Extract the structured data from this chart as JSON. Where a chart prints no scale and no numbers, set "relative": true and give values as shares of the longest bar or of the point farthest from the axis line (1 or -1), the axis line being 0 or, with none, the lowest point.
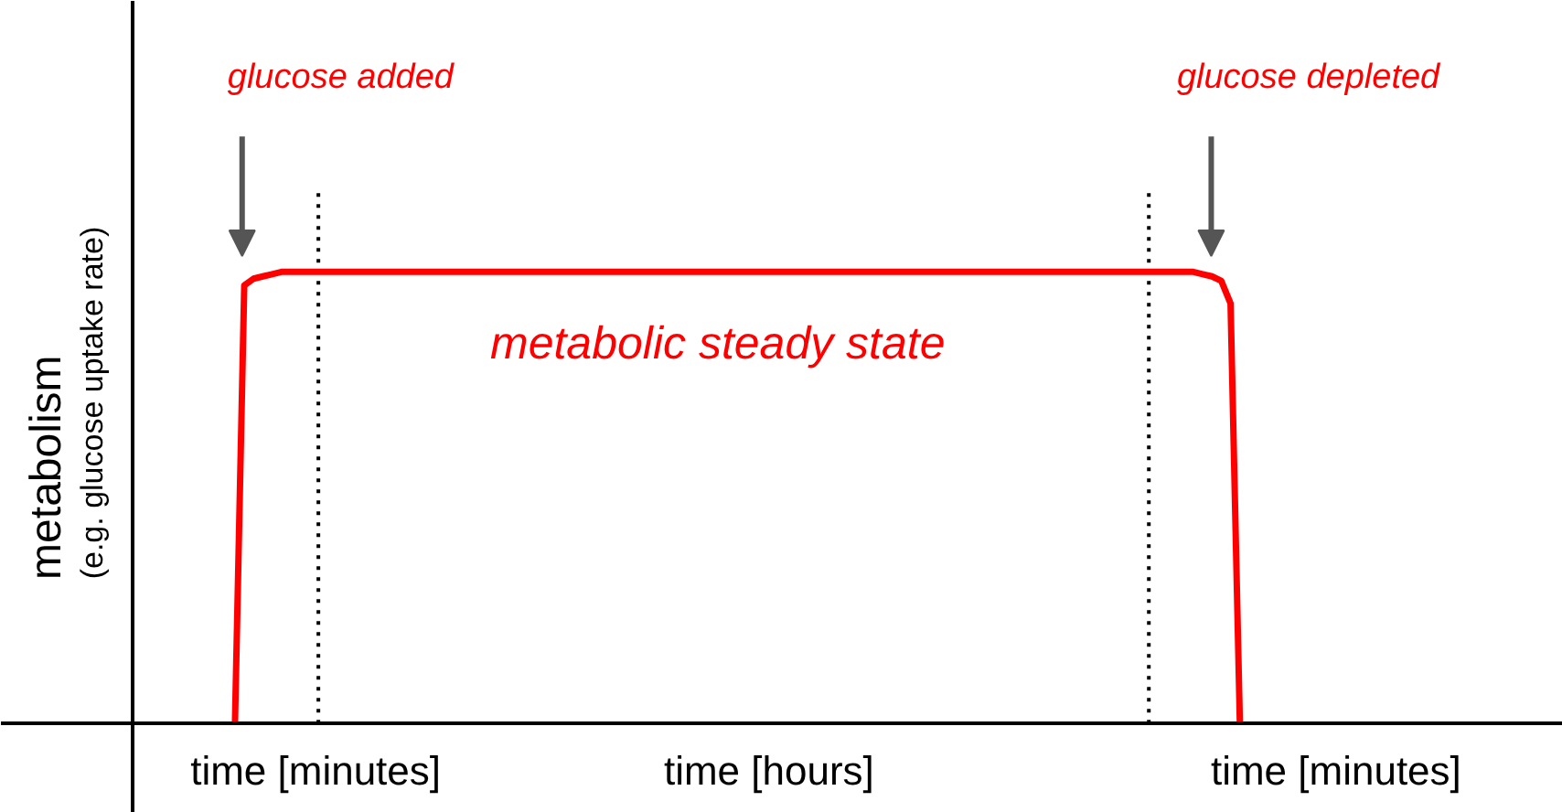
{
  "chart_data": {
    "type": "line",
    "relative": true,
    "ylabel": "metabolism\n(e.g. glucose uptake rate)",
    "categories": [
      null,
      null,
      null,
      null,
      null,
      null,
      null,
      null,
      null,
      null,
      null,
      null,
      null,
      null,
      null,
      null,
      null,
      null,
      null,
      null,
      null,
      null,
      null,
      null,
      null,
      null,
      null,
      null,
      null,
      null,
      null,
      null,
      null,
      null,
      null,
      null,
      null,
      null,
      null,
      null,
      null,
      null,
      null,
      null,
      null,
      null,
      null,
      null,
      null,
      null,
      null,
      null,
      null,
      null,
      null,
      null,
      null,
      null,
      null,
      null,
      null,
      null,
      null,
      null,
      null,
      null,
      null,
      null,
      null,
      null,
      null,
      null,
      null,
      null,
      null,
      null,
      null,
      null,
      null,
      null,
      null,
      null,
      null,
      null,
      null,
      null,
      null,
      null,
      null,
      null,
      null,
      null,
      null,
      null,
      null,
      null,
      null,
      null,
      null,
      null,
      null,
      null,
      null,
      null,
      null,
      null,
      null,
      null,
      null,
      null,
      null,
      null,
      null,
      null,
      null,
      null,
      null,
      null,
      null,
      null,
      null,
      null,
      null,
      null,
      null,
      null,
      null,
      null,
      null,
      null,
      null,
      null,
      null,
      null,
      null,
      null,
      null,
      null,
      null,
      null,
      null,
      null,
      null,
      null,
      null,
      null,
      null,
      null,
      null,
      null
    ],
    "series": [
      {
        "color": "#ff0000",
        "values": [
          null,
          null,
          null,
          null,
          null,
          null,
          null,
          null,
          null,
          null,
          null,
          0,
          0.97,
          0.985,
          0.99,
          0.995,
          1,
          1,
          1,
          1,
          1,
          1,
          1,
          1,
          1,
          1,
          1,
          1,
          1,
          1,
          1,
          1,
          1,
          1,
          1,
          1,
          1,
          1,
          1,
          1,
          1,
          1,
          1,
          1,
          1,
          1,
          1,
          1,
          1,
          1,
          1,
          1,
          1,
          1,
          1,
          1,
          1,
          1,
          1,
          1,
          1,
          1,
          1,
          1,
          1,
          1,
          1,
          1,
          1,
          1,
          1,
          1,
          1,
          1,
          1,
          1,
          1,
          1,
          1,
          1,
          1,
          1,
          1,
          1,
          1,
          1,
          1,
          1,
          1,
          1,
          1,
          1,
          1,
          1,
          1,
          1,
          1,
          1,
          1,
          1,
          1,
          1,
          1,
          1,
          1,
          1,
          1,
          1,
          1,
          1,
          1,
          1,
          1,
          1,
          1,
          0.995,
          0.99,
          0.98,
          0.93,
          0,
          null,
          null,
          null,
          null,
          null,
          null,
          null,
          null,
          null,
          null,
          null,
          null,
          null,
          null,
          null,
          null,
          null,
          null,
          null,
          null,
          null,
          null,
          null,
          null,
          null,
          null,
          null,
          null,
          null,
          null
        ]
      }
    ],
    "annotations": [
      "glucose added",
      "glucose depleted",
      "metabolic steady state",
      "time [minutes]",
      "time [hours]",
      "time [minutes]"
    ]
  }
}
